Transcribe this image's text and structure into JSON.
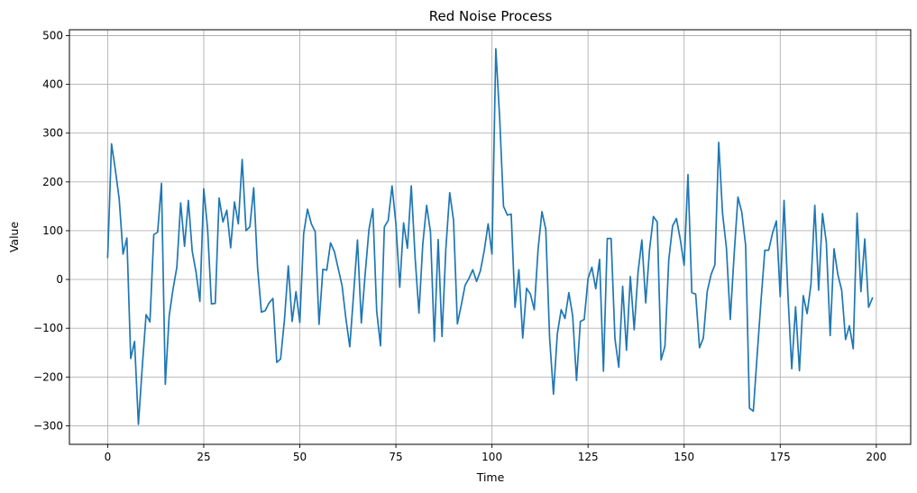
{
  "chart_data": {
    "type": "line",
    "title": "Red Noise Process",
    "xlabel": "Time",
    "ylabel": "Value",
    "xlim": [
      -9.95,
      208.95
    ],
    "ylim": [
      -338,
      512
    ],
    "xticks": [
      0,
      25,
      50,
      75,
      100,
      125,
      150,
      175,
      200
    ],
    "yticks": [
      -300,
      -200,
      -100,
      0,
      100,
      200,
      300,
      400,
      500
    ],
    "ytick_labels": [
      "−300",
      "−200",
      "−100",
      "0",
      "100",
      "200",
      "300",
      "400",
      "500"
    ],
    "grid": true,
    "line_color": "#1f77b4",
    "series": [
      {
        "values": [
          45,
          278,
          225,
          165,
          52,
          85,
          -162,
          -127,
          -297,
          -180,
          -72,
          -87,
          92,
          97,
          197,
          -215,
          -75,
          -20,
          25,
          157,
          68,
          162,
          58,
          15,
          -45,
          186,
          104,
          -50,
          -49,
          167,
          118,
          142,
          65,
          159,
          114,
          246,
          100,
          108,
          188,
          25,
          -67,
          -64,
          -48,
          -39,
          -170,
          -163,
          -83,
          28,
          -86,
          -25,
          -88,
          94,
          144,
          114,
          98,
          -92,
          21,
          19,
          75,
          57,
          22,
          -13,
          -81,
          -138,
          -29,
          81,
          -89,
          11,
          103,
          145,
          -65,
          -136,
          108,
          121,
          192,
          114,
          -16,
          116,
          64,
          192,
          45,
          -69,
          73,
          152,
          97,
          -127,
          82,
          -117,
          63,
          178,
          121,
          -91,
          -53,
          -12,
          2,
          20,
          -4,
          18,
          60,
          114,
          52,
          473,
          331,
          150,
          132,
          134,
          -57,
          20,
          -120,
          -18,
          -30,
          -62,
          62,
          139,
          103,
          -120,
          -235,
          -112,
          -62,
          -80,
          -27,
          -75,
          -207,
          -86,
          -82,
          2,
          25,
          -19,
          41,
          -188,
          84,
          84,
          -122,
          -180,
          -14,
          -145,
          6,
          -103,
          14,
          81,
          -48,
          61,
          129,
          118,
          -165,
          -137,
          40,
          110,
          125,
          82,
          29,
          215,
          -27,
          -30,
          -140,
          -120,
          -25,
          10,
          30,
          281,
          135,
          65,
          -82,
          50,
          169,
          138,
          70,
          -264,
          -270,
          -155,
          -44,
          60,
          60,
          95,
          120,
          -35,
          162,
          -30,
          -183,
          -56,
          -187,
          -33,
          -70,
          -10,
          152,
          -22,
          135,
          76,
          -115,
          63,
          10,
          -22,
          -123,
          -95,
          -142,
          136,
          -25,
          83,
          -57,
          -38
        ]
      }
    ]
  }
}
